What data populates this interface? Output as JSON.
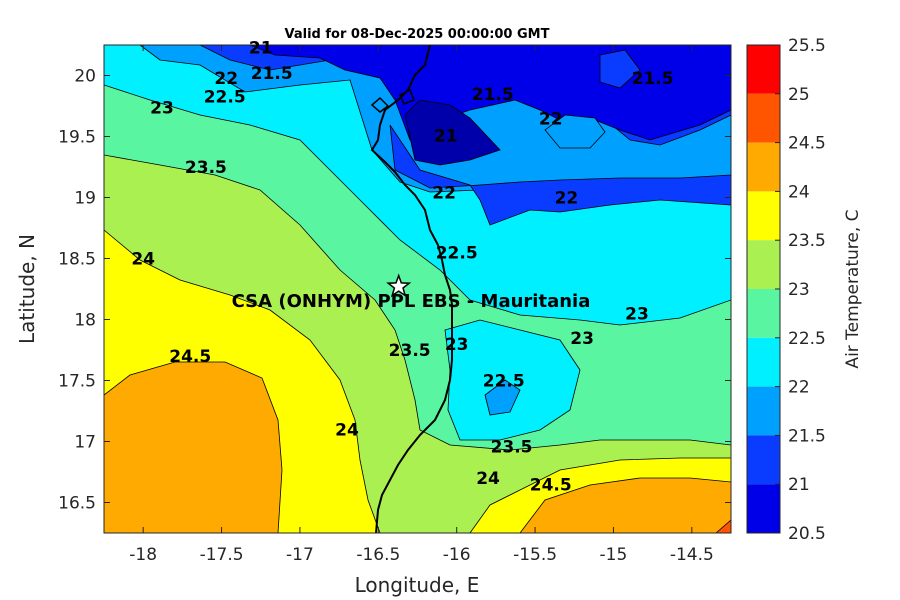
{
  "title": "Valid for 08-Dec-2025 00:00:00 GMT",
  "site_label": "CSA (ONHYM) PPL EBS  - Mauritania",
  "colors": {
    "c20_5": "#0000aa",
    "c21": "#0000e8",
    "c21_5": "#0a3cff",
    "c22": "#00a0ff",
    "c22_5": "#00f0ff",
    "c23": "#5af5a0",
    "c23_5": "#aaf050",
    "c24": "#ffff00",
    "c24_5": "#ffaa00",
    "c25": "#ff5500",
    "c25_5": "#ff0000"
  },
  "chart_data": {
    "type": "contour-map",
    "xlabel": "Longitude, E",
    "ylabel": "Latitude, N",
    "colorbar_label": "Air Temperature, C",
    "xlim": [
      -18.25,
      -14.25
    ],
    "ylim": [
      16.25,
      20.25
    ],
    "xticks": [
      "-18",
      "-17.5",
      "-17",
      "-16.5",
      "-16",
      "-15.5",
      "-15",
      "-14.5"
    ],
    "yticks": [
      "20",
      "19.5",
      "19",
      "18.5",
      "18",
      "17.5",
      "17",
      "16.5"
    ],
    "colorbar_ticks": [
      "25.5",
      "25",
      "24.5",
      "24",
      "23.5",
      "23",
      "22.5",
      "22",
      "21.5",
      "21",
      "20.5"
    ],
    "contour_labels": [
      {
        "text": "21",
        "lon": -17.25,
        "lat": 20.18
      },
      {
        "text": "21.5",
        "lon": -17.18,
        "lat": 19.97
      },
      {
        "text": "22",
        "lon": -17.47,
        "lat": 19.93
      },
      {
        "text": "22.5",
        "lon": -17.48,
        "lat": 19.78
      },
      {
        "text": "23",
        "lon": -17.88,
        "lat": 19.69
      },
      {
        "text": "23.5",
        "lon": -17.6,
        "lat": 19.2
      },
      {
        "text": "24",
        "lon": -18.0,
        "lat": 18.45
      },
      {
        "text": "24.5",
        "lon": -17.7,
        "lat": 17.65
      },
      {
        "text": "21.5",
        "lon": -15.77,
        "lat": 19.8
      },
      {
        "text": "22",
        "lon": -15.4,
        "lat": 19.6
      },
      {
        "text": "21.5",
        "lon": -14.75,
        "lat": 19.93
      },
      {
        "text": "21",
        "lon": -16.07,
        "lat": 19.46
      },
      {
        "text": "22",
        "lon": -16.08,
        "lat": 18.99
      },
      {
        "text": "22",
        "lon": -15.3,
        "lat": 18.95
      },
      {
        "text": "22.5",
        "lon": -16.0,
        "lat": 18.5
      },
      {
        "text": "23",
        "lon": -14.85,
        "lat": 18.0
      },
      {
        "text": "23",
        "lon": -15.2,
        "lat": 17.8
      },
      {
        "text": "23.5",
        "lon": -16.3,
        "lat": 17.7
      },
      {
        "text": "23",
        "lon": -16.0,
        "lat": 17.75
      },
      {
        "text": "22.5",
        "lon": -15.7,
        "lat": 17.45
      },
      {
        "text": "24",
        "lon": -16.7,
        "lat": 17.05
      },
      {
        "text": "23.5",
        "lon": -15.65,
        "lat": 16.91
      },
      {
        "text": "24",
        "lon": -15.8,
        "lat": 16.65
      },
      {
        "text": "24.5",
        "lon": -15.4,
        "lat": 16.6
      }
    ],
    "site": {
      "lon": -16.37,
      "lat": 18.27
    }
  }
}
